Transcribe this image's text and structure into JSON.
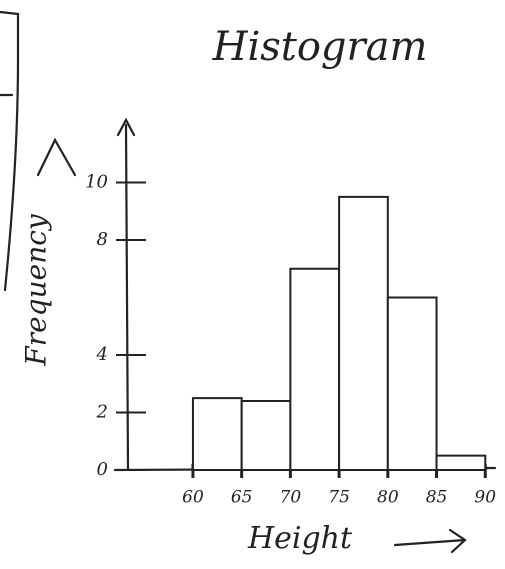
{
  "chart_data": {
    "type": "histogram",
    "title": "Histogram",
    "x_label": "Height",
    "y_label": "Frequency",
    "bins": [
      60,
      65,
      70,
      75,
      80,
      85,
      90
    ],
    "counts": [
      2.5,
      2.4,
      7,
      9.5,
      6,
      0.5
    ],
    "xlim": [
      52,
      91
    ],
    "xticks": [
      60,
      65,
      70,
      75,
      80,
      85,
      90
    ],
    "ylim": [
      0,
      12
    ],
    "yticks": [
      0,
      2,
      4,
      8,
      10
    ],
    "color": "#ffffff",
    "grid": false
  }
}
